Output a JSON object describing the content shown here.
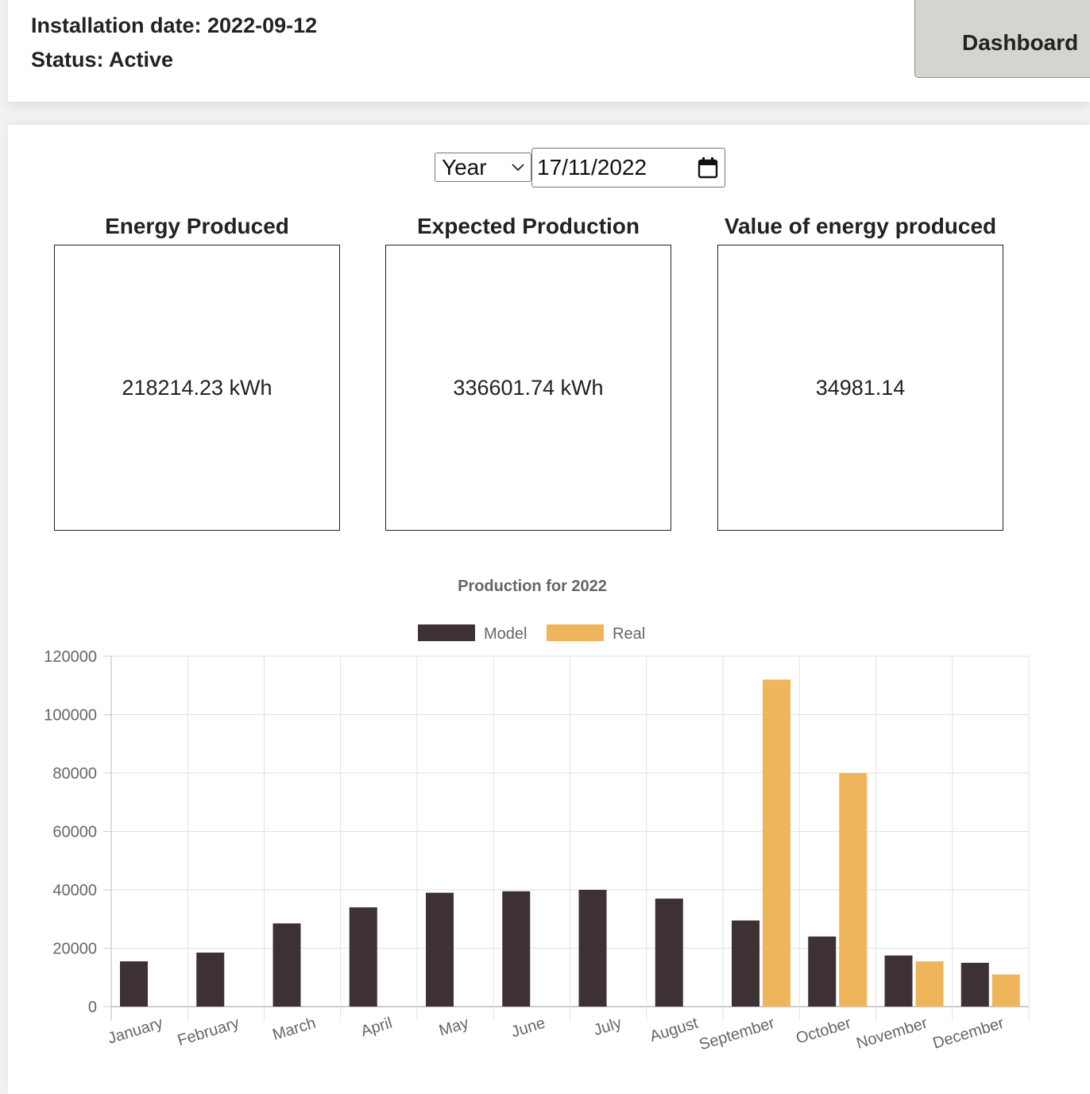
{
  "system": {
    "installation_date": "Installation date: 2022-09-12",
    "status": "Status: Active"
  },
  "header": {
    "dashboard_label": "Dashboard"
  },
  "controls": {
    "period_value": "Year",
    "date_value": "17/11/2022"
  },
  "stats": [
    {
      "title": "Energy Produced",
      "value": "218214.23 kWh"
    },
    {
      "title": "Expected Production",
      "value": "336601.74 kWh"
    },
    {
      "title": "Value of energy produced",
      "value": "34981.14"
    }
  ],
  "chart_data": {
    "type": "bar",
    "title": "Production for 2022",
    "categories": [
      "January",
      "February",
      "March",
      "April",
      "May",
      "June",
      "July",
      "August",
      "September",
      "October",
      "November",
      "December"
    ],
    "series": [
      {
        "name": "Model",
        "color": "#3d3134",
        "values": [
          15500,
          18500,
          28500,
          34000,
          39000,
          39500,
          40000,
          37000,
          29500,
          24000,
          17500,
          15000
        ]
      },
      {
        "name": "Real",
        "color": "#efb55a",
        "values": [
          0,
          0,
          0,
          0,
          0,
          0,
          0,
          0,
          112000,
          80000,
          15500,
          11000
        ]
      }
    ],
    "yticks": [
      "0",
      "20000",
      "40000",
      "60000",
      "80000",
      "100000",
      "120000"
    ],
    "ylim": [
      0,
      120000
    ],
    "legend_position": "top",
    "grid": true
  }
}
